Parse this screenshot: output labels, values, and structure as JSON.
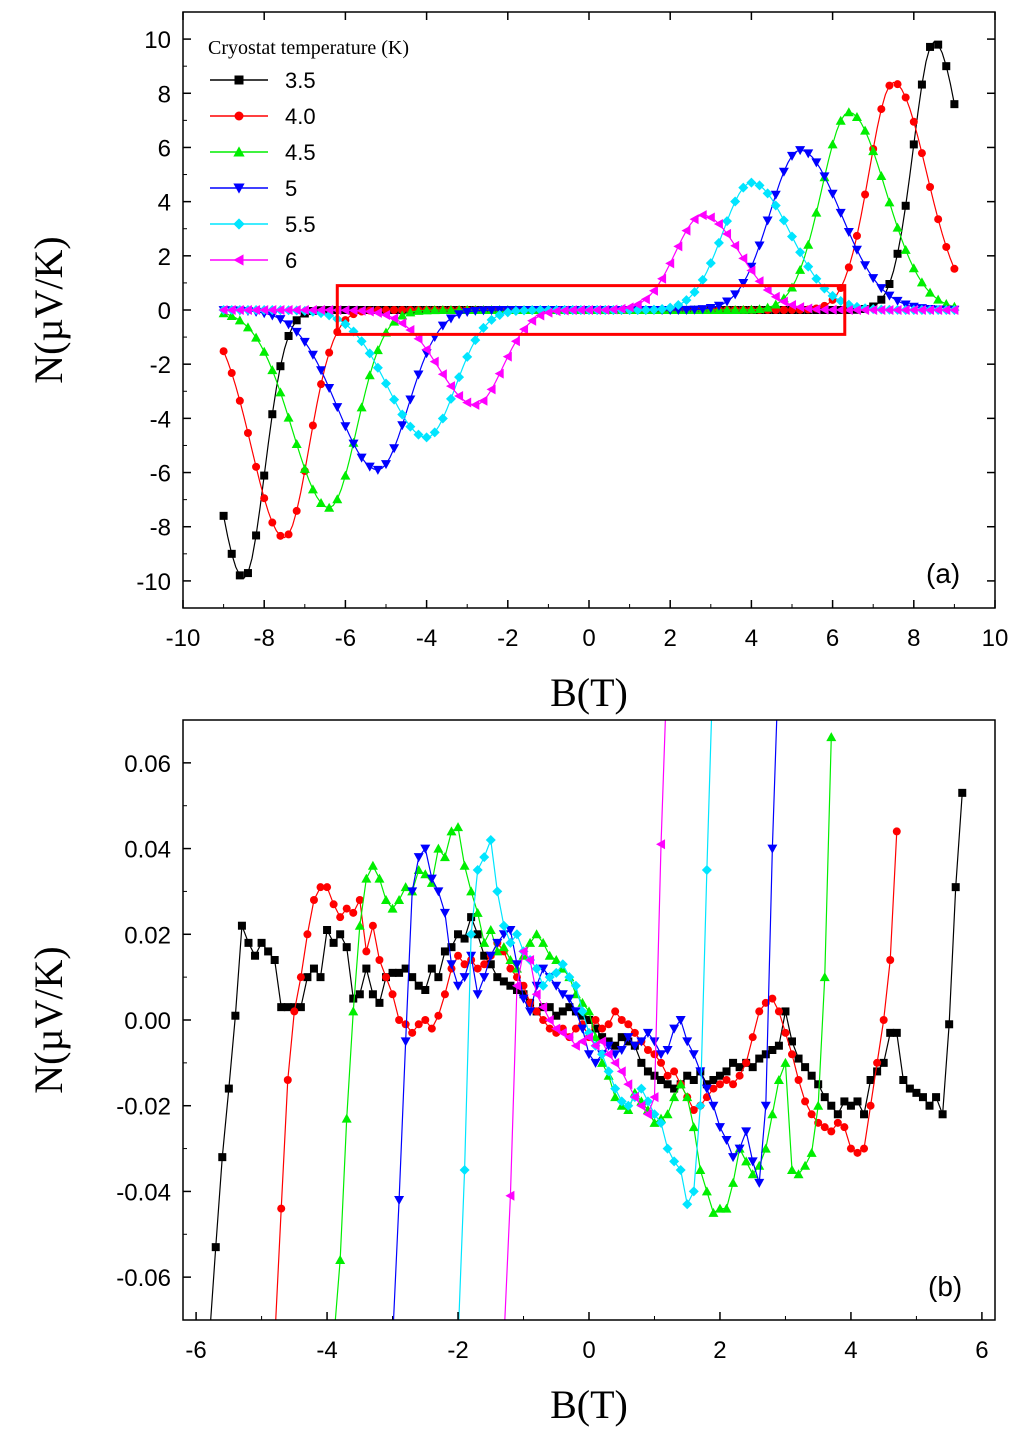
{
  "chart_data": [
    {
      "panel": "(a)",
      "type": "line",
      "xlabel": "B(T)",
      "ylabel": "N(µV/K)",
      "xlim": [
        -10,
        10
      ],
      "ylim": [
        -11,
        11
      ],
      "xticks": [
        -10,
        -8,
        -6,
        -4,
        -2,
        0,
        2,
        4,
        6,
        8,
        10
      ],
      "yticks": [
        -10,
        -8,
        -6,
        -4,
        -2,
        0,
        2,
        4,
        6,
        8,
        10
      ],
      "legend_title": "Cryostat temperature (K)",
      "legend_position": "top-left",
      "highlight_box": {
        "x": [
          -6.2,
          6.3
        ],
        "y": [
          -0.9,
          0.9
        ],
        "color": "#ff0000"
      },
      "series": [
        {
          "name": "3.5",
          "color": "#000000",
          "marker": "square",
          "peak_B": 8.5,
          "peak_N": 9.9,
          "width": 0.72
        },
        {
          "name": "4.0",
          "color": "#ff0000",
          "marker": "circle",
          "peak_B": 7.5,
          "peak_N": 8.4,
          "width": 0.85
        },
        {
          "name": "4.5",
          "color": "#00ee00",
          "marker": "triangle-up",
          "peak_B": 6.4,
          "peak_N": 7.3,
          "width": 0.95
        },
        {
          "name": "5",
          "color": "#0000ff",
          "marker": "triangle-down",
          "peak_B": 5.2,
          "peak_N": 5.9,
          "width": 1.05
        },
        {
          "name": "5.5",
          "color": "#00e5ff",
          "marker": "diamond",
          "peak_B": 4.0,
          "peak_N": 4.7,
          "width": 1.0
        },
        {
          "name": "6",
          "color": "#ff00ff",
          "marker": "triangle-left",
          "peak_B": 2.8,
          "peak_N": 3.5,
          "width": 0.95
        }
      ]
    },
    {
      "panel": "(b)",
      "type": "line",
      "xlabel": "B(T)",
      "ylabel": "N(µV/K)",
      "xlim": [
        -6.2,
        6.2
      ],
      "ylim": [
        -0.07,
        0.07
      ],
      "xticks": [
        -6,
        -4,
        -2,
        0,
        2,
        4,
        6
      ],
      "yticks": [
        -0.06,
        -0.04,
        -0.02,
        0.0,
        0.02,
        0.04,
        0.06
      ],
      "ytick_labels": [
        "-0.06",
        "-0.04",
        "-0.02",
        "0.00",
        "0.02",
        "0.04",
        "0.06"
      ],
      "series": [
        {
          "name": "3.5",
          "color": "#000000",
          "marker": "square",
          "x": [
            -5.8,
            -5.7,
            -5.6,
            -5.5,
            -5.4,
            -5.3,
            -5.2,
            -5.1,
            -5.0,
            -4.9,
            -4.8,
            -4.7,
            -4.6,
            -4.5,
            -4.4,
            -4.3,
            -4.2,
            -4.1,
            -4.0,
            -3.9,
            -3.8,
            -3.7,
            -3.6,
            -3.5,
            -3.4,
            -3.3,
            -3.2,
            -3.1,
            -3.0,
            -2.9,
            -2.8,
            -2.7,
            -2.6,
            -2.5,
            -2.4,
            -2.3,
            -2.2,
            -2.1,
            -2.0,
            -1.9,
            -1.8,
            -1.7,
            -1.6,
            -1.5,
            -1.4,
            -1.3,
            -1.2,
            -1.1,
            -1.0,
            -0.9,
            -0.8,
            -0.7,
            -0.6,
            -0.5,
            -0.4,
            -0.3,
            -0.2,
            -0.1,
            0.0,
            0.1,
            0.2,
            0.3,
            0.4,
            0.5,
            0.6,
            0.7,
            0.8,
            0.9,
            1.0,
            1.1,
            1.2,
            1.3,
            1.4,
            1.5,
            1.6,
            1.7,
            1.8,
            1.9,
            2.0,
            2.1,
            2.2,
            2.3,
            2.4,
            2.5,
            2.6,
            2.7,
            2.8,
            2.9,
            3.0,
            3.1,
            3.2,
            3.3,
            3.4,
            3.5,
            3.6,
            3.7,
            3.8,
            3.9,
            4.0,
            4.1,
            4.2,
            4.3,
            4.4,
            4.5,
            4.6,
            4.7,
            4.8,
            4.9,
            5.0,
            5.1,
            5.2,
            5.3,
            5.4,
            5.5,
            5.6,
            5.7
          ],
          "y": [
            -0.075,
            -0.053,
            -0.032,
            -0.016,
            0.001,
            0.022,
            0.018,
            0.015,
            0.018,
            0.016,
            0.014,
            0.003,
            0.003,
            0.003,
            0.003,
            0.01,
            0.012,
            0.01,
            0.021,
            0.018,
            0.02,
            0.017,
            0.005,
            0.006,
            0.012,
            0.006,
            0.004,
            0.01,
            0.011,
            0.011,
            0.012,
            0.01,
            0.008,
            0.007,
            0.012,
            0.01,
            0.016,
            0.017,
            0.02,
            0.019,
            0.024,
            0.02,
            0.015,
            0.013,
            0.01,
            0.009,
            0.008,
            0.007,
            0.006,
            0.004,
            0.002,
            0.003,
            0.003,
            0.001,
            0.002,
            0.003,
            0.002,
            0.001,
            0.0,
            -0.002,
            -0.004,
            -0.005,
            -0.006,
            -0.004,
            -0.005,
            -0.006,
            -0.01,
            -0.012,
            -0.013,
            -0.014,
            -0.015,
            -0.016,
            -0.015,
            -0.013,
            -0.014,
            -0.012,
            -0.015,
            -0.014,
            -0.013,
            -0.012,
            -0.01,
            -0.011,
            -0.01,
            -0.011,
            -0.009,
            -0.008,
            -0.007,
            -0.006,
            0.002,
            -0.005,
            -0.009,
            -0.011,
            -0.013,
            -0.015,
            -0.018,
            -0.02,
            -0.022,
            -0.019,
            -0.02,
            -0.019,
            -0.022,
            -0.014,
            -0.012,
            -0.01,
            -0.003,
            -0.003,
            -0.014,
            -0.016,
            -0.017,
            -0.018,
            -0.02,
            -0.018,
            -0.022,
            -0.001,
            0.031,
            0.053
          ]
        },
        {
          "name": "4.0",
          "color": "#ff0000",
          "marker": "circle",
          "x": [
            -4.8,
            -4.7,
            -4.6,
            -4.5,
            -4.4,
            -4.3,
            -4.2,
            -4.1,
            -4.0,
            -3.9,
            -3.8,
            -3.7,
            -3.6,
            -3.5,
            -3.4,
            -3.3,
            -3.2,
            -3.1,
            -3.0,
            -2.9,
            -2.8,
            -2.7,
            -2.6,
            -2.5,
            -2.4,
            -2.3,
            -2.2,
            -2.1,
            -2.0,
            -1.9,
            -1.8,
            -1.7,
            -1.6,
            -1.5,
            -1.4,
            -1.3,
            -1.2,
            -1.1,
            -1.0,
            -0.9,
            -0.8,
            -0.7,
            -0.6,
            -0.5,
            -0.4,
            -0.3,
            -0.2,
            -0.1,
            0.0,
            0.1,
            0.2,
            0.3,
            0.4,
            0.5,
            0.6,
            0.7,
            0.8,
            0.9,
            1.0,
            1.1,
            1.2,
            1.3,
            1.4,
            1.5,
            1.6,
            1.7,
            1.8,
            1.9,
            2.0,
            2.1,
            2.2,
            2.3,
            2.4,
            2.5,
            2.6,
            2.7,
            2.8,
            2.9,
            3.0,
            3.1,
            3.2,
            3.3,
            3.4,
            3.5,
            3.6,
            3.7,
            3.8,
            3.9,
            4.0,
            4.1,
            4.2,
            4.3,
            4.4,
            4.5,
            4.6,
            4.7
          ],
          "y": [
            -0.075,
            -0.044,
            -0.014,
            0.002,
            0.01,
            0.02,
            0.028,
            0.031,
            0.031,
            0.027,
            0.024,
            0.026,
            0.025,
            0.028,
            0.016,
            0.022,
            0.014,
            0.01,
            0.006,
            0.0,
            -0.001,
            -0.003,
            -0.001,
            0.0,
            -0.002,
            0.001,
            0.006,
            0.012,
            0.015,
            0.013,
            0.014,
            0.012,
            0.013,
            0.015,
            0.018,
            0.016,
            0.012,
            0.01,
            0.008,
            0.004,
            0.002,
            0.0,
            -0.002,
            -0.003,
            -0.002,
            -0.004,
            -0.002,
            -0.001,
            -0.004,
            0.0,
            -0.002,
            -0.001,
            0.002,
            0.0,
            -0.001,
            -0.003,
            -0.005,
            -0.007,
            -0.008,
            -0.01,
            -0.013,
            -0.012,
            -0.015,
            -0.018,
            -0.021,
            -0.02,
            -0.018,
            -0.016,
            -0.015,
            -0.014,
            -0.015,
            -0.013,
            -0.01,
            -0.004,
            0.002,
            0.004,
            0.005,
            0.002,
            -0.003,
            -0.008,
            -0.014,
            -0.019,
            -0.022,
            -0.024,
            -0.025,
            -0.026,
            -0.024,
            -0.025,
            -0.03,
            -0.031,
            -0.03,
            -0.02,
            -0.01,
            0.0,
            0.014,
            0.044
          ]
        },
        {
          "name": "4.5",
          "color": "#00ee00",
          "marker": "triangle-up",
          "x": [
            -3.9,
            -3.8,
            -3.7,
            -3.6,
            -3.5,
            -3.4,
            -3.3,
            -3.2,
            -3.1,
            -3.0,
            -2.9,
            -2.8,
            -2.7,
            -2.6,
            -2.5,
            -2.4,
            -2.3,
            -2.2,
            -2.1,
            -2.0,
            -1.9,
            -1.8,
            -1.7,
            -1.6,
            -1.5,
            -1.4,
            -1.3,
            -1.2,
            -1.1,
            -1.0,
            -0.9,
            -0.8,
            -0.7,
            -0.6,
            -0.5,
            -0.4,
            -0.3,
            -0.2,
            -0.1,
            0.0,
            0.1,
            0.2,
            0.3,
            0.4,
            0.5,
            0.6,
            0.7,
            0.8,
            0.9,
            1.0,
            1.1,
            1.2,
            1.3,
            1.4,
            1.5,
            1.6,
            1.7,
            1.8,
            1.9,
            2.0,
            2.1,
            2.2,
            2.3,
            2.4,
            2.5,
            2.6,
            2.7,
            2.8,
            2.9,
            3.0,
            3.1,
            3.2,
            3.3,
            3.4,
            3.5,
            3.6,
            3.7
          ],
          "y": [
            -0.075,
            -0.056,
            -0.023,
            0.002,
            0.022,
            0.033,
            0.036,
            0.033,
            0.028,
            0.026,
            0.028,
            0.031,
            0.03,
            0.035,
            0.034,
            0.032,
            0.04,
            0.038,
            0.044,
            0.045,
            0.036,
            0.03,
            0.025,
            0.018,
            0.021,
            0.016,
            0.017,
            0.014,
            0.012,
            0.015,
            0.018,
            0.02,
            0.018,
            0.015,
            0.014,
            0.012,
            0.01,
            0.006,
            0.004,
            0.002,
            -0.004,
            -0.01,
            -0.013,
            -0.018,
            -0.02,
            -0.021,
            -0.017,
            -0.019,
            -0.021,
            -0.024,
            -0.023,
            -0.022,
            -0.018,
            -0.015,
            -0.018,
            -0.025,
            -0.035,
            -0.04,
            -0.045,
            -0.044,
            -0.044,
            -0.038,
            -0.03,
            -0.033,
            -0.036,
            -0.034,
            -0.03,
            -0.022,
            -0.014,
            -0.01,
            -0.035,
            -0.036,
            -0.034,
            -0.031,
            -0.02,
            0.01,
            0.066
          ]
        },
        {
          "name": "5",
          "color": "#0000ff",
          "marker": "triangle-down",
          "x": [
            -3.0,
            -2.9,
            -2.8,
            -2.7,
            -2.6,
            -2.5,
            -2.4,
            -2.3,
            -2.2,
            -2.1,
            -2.0,
            -1.9,
            -1.8,
            -1.7,
            -1.6,
            -1.5,
            -1.4,
            -1.3,
            -1.2,
            -1.1,
            -1.0,
            -0.9,
            -0.8,
            -0.7,
            -0.6,
            -0.5,
            -0.4,
            -0.3,
            -0.2,
            -0.1,
            0.0,
            0.1,
            0.2,
            0.3,
            0.4,
            0.5,
            0.6,
            0.7,
            0.8,
            0.9,
            1.0,
            1.1,
            1.2,
            1.3,
            1.4,
            1.5,
            1.6,
            1.7,
            1.8,
            1.9,
            2.0,
            2.1,
            2.2,
            2.3,
            2.4,
            2.5,
            2.6,
            2.7,
            2.8,
            2.9
          ],
          "y": [
            -0.075,
            -0.042,
            -0.005,
            0.03,
            0.038,
            0.04,
            0.033,
            0.03,
            0.025,
            0.013,
            0.008,
            0.01,
            0.015,
            0.006,
            0.01,
            0.015,
            0.018,
            0.02,
            0.021,
            0.013,
            0.005,
            0.002,
            0.008,
            0.012,
            0.01,
            0.008,
            0.006,
            0.005,
            0.002,
            -0.002,
            -0.008,
            -0.01,
            -0.008,
            -0.006,
            -0.008,
            -0.007,
            -0.004,
            -0.006,
            -0.005,
            -0.003,
            -0.005,
            -0.008,
            -0.007,
            -0.002,
            0.0,
            -0.005,
            -0.008,
            -0.012,
            -0.016,
            -0.02,
            -0.025,
            -0.028,
            -0.032,
            -0.03,
            -0.026,
            -0.033,
            -0.038,
            -0.02,
            0.04,
            0.085
          ]
        },
        {
          "name": "5.5",
          "color": "#00e5ff",
          "marker": "diamond",
          "x": [
            -2.0,
            -1.9,
            -1.8,
            -1.7,
            -1.6,
            -1.5,
            -1.4,
            -1.3,
            -1.2,
            -1.1,
            -1.0,
            -0.9,
            -0.8,
            -0.7,
            -0.6,
            -0.5,
            -0.4,
            -0.3,
            -0.2,
            -0.1,
            0.0,
            0.1,
            0.2,
            0.3,
            0.4,
            0.5,
            0.6,
            0.7,
            0.8,
            0.9,
            1.0,
            1.1,
            1.2,
            1.3,
            1.4,
            1.5,
            1.6,
            1.7,
            1.8,
            1.9
          ],
          "y": [
            -0.075,
            -0.035,
            0.02,
            0.035,
            0.038,
            0.042,
            0.03,
            0.022,
            0.018,
            0.02,
            0.016,
            0.014,
            0.012,
            0.008,
            0.01,
            0.011,
            0.013,
            0.01,
            0.008,
            0.002,
            -0.003,
            -0.006,
            -0.008,
            -0.012,
            -0.016,
            -0.019,
            -0.02,
            -0.018,
            -0.016,
            -0.019,
            -0.022,
            -0.024,
            -0.03,
            -0.033,
            -0.035,
            -0.043,
            -0.04,
            -0.02,
            0.035,
            0.085
          ]
        },
        {
          "name": "6",
          "color": "#ff00ff",
          "marker": "triangle-left",
          "x": [
            -1.3,
            -1.2,
            -1.1,
            -1.0,
            -0.9,
            -0.8,
            -0.7,
            -0.6,
            -0.5,
            -0.4,
            -0.3,
            -0.2,
            -0.1,
            0.0,
            0.1,
            0.2,
            0.3,
            0.4,
            0.5,
            0.6,
            0.7,
            0.8,
            0.9,
            1.0,
            1.1,
            1.2
          ],
          "y": [
            -0.075,
            -0.041,
            0.008,
            0.016,
            0.014,
            0.006,
            0.003,
            0.0,
            -0.002,
            -0.003,
            -0.004,
            -0.006,
            -0.005,
            -0.004,
            -0.006,
            -0.005,
            -0.008,
            -0.01,
            -0.012,
            -0.015,
            -0.018,
            -0.02,
            -0.022,
            -0.018,
            0.041,
            0.085
          ]
        }
      ]
    }
  ]
}
